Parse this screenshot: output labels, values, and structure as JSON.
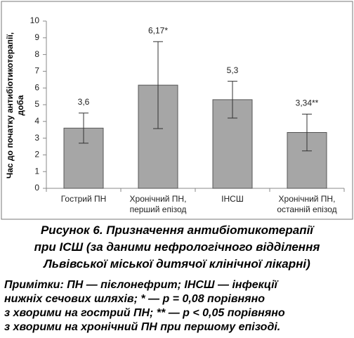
{
  "chart_data": {
    "type": "bar",
    "y_label": "Час до початку антибіотикотерапії,\nдоба",
    "categories": [
      "Гострий ПН",
      "Хронічний ПН,\nперший епізод",
      "ІНСШ",
      "Хронічний ПН,\nостанній епізод"
    ],
    "values": [
      3.6,
      6.17,
      5.3,
      3.34
    ],
    "value_labels": [
      "3,6",
      "6,17*",
      "5,3",
      "3,34**"
    ],
    "errors": [
      0.9,
      2.6,
      1.1,
      1.1
    ],
    "color": "#a6a6a6",
    "ylim": [
      0,
      10
    ],
    "yticks": [
      0,
      1,
      2,
      3,
      4,
      5,
      6,
      7,
      8,
      9,
      10
    ],
    "grid": false
  },
  "caption": "Рисунок 6. Призначення антибіотикотерапії\nпри ІСШ (за даними нефрологічного відділення\nЛьвівської міської дитячої клінічної лікарні)",
  "notes": "Примітки: ПН — пієлонефрит; ІНСШ — інфекції\nнижніх сечових шляхів; * — р = 0,08 порівняно\nз хворими на гострий ПН; ** — р < 0,05 порівняно\nз хворими на хронічний ПН при першому епізоді."
}
